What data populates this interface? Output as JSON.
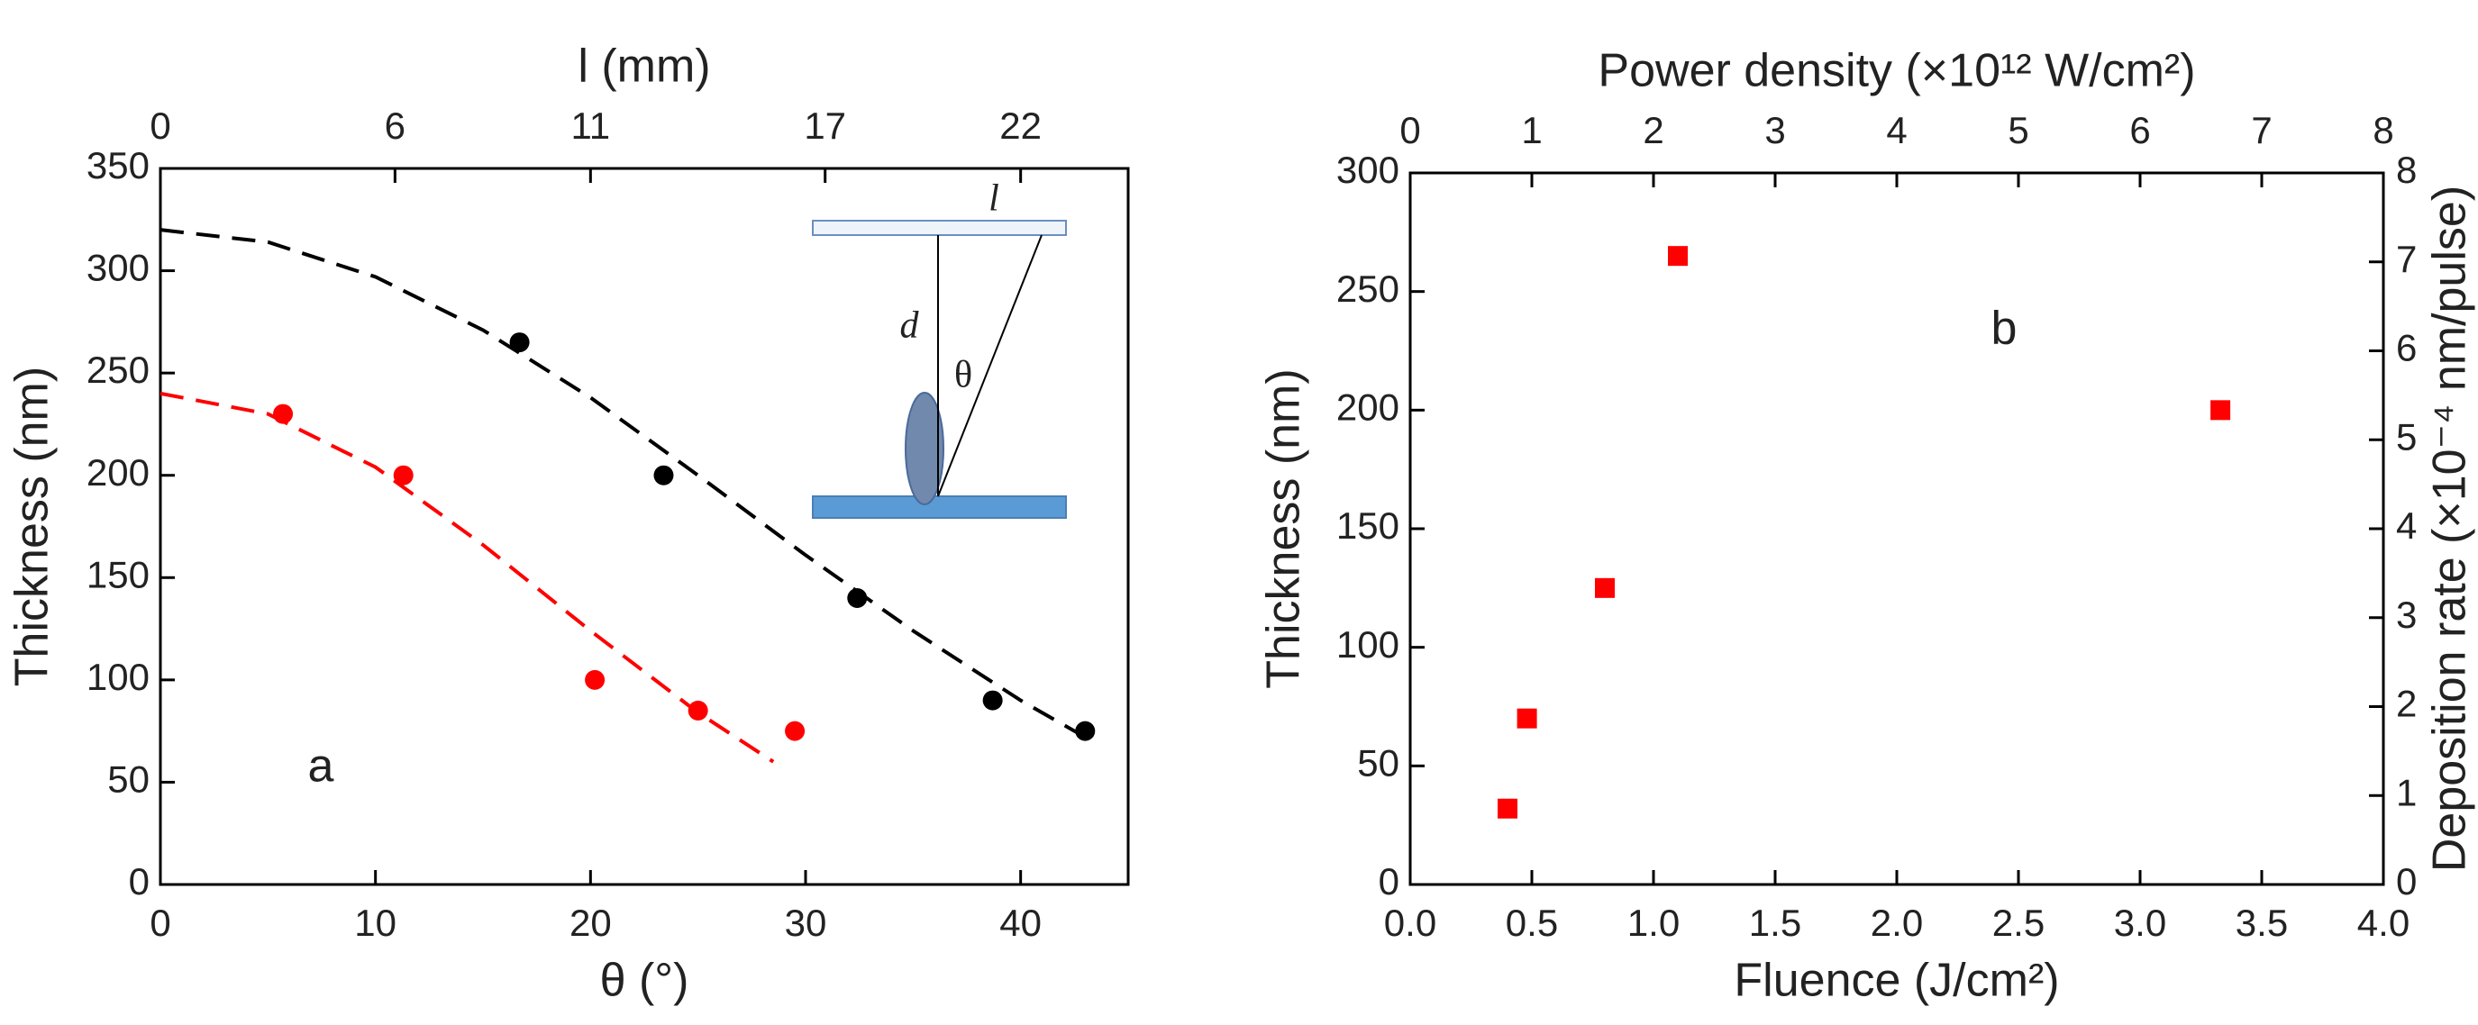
{
  "chart_data": [
    {
      "type": "scatter",
      "xlabel": "θ (°)",
      "ylabel": "Thickness (nm)",
      "x2label": "l (mm)",
      "xlim": [
        0,
        45
      ],
      "xticks": [
        0,
        10,
        20,
        30,
        40
      ],
      "ylim": [
        0,
        350
      ],
      "yticks": [
        0,
        50,
        100,
        150,
        200,
        250,
        300,
        350
      ],
      "x2lim": [
        0,
        24.75
      ],
      "x2ticks": [
        0,
        6,
        11,
        17,
        22
      ],
      "series": [
        {
          "color": "#000000",
          "marker": "circle",
          "x": [
            16.7,
            23.4,
            32.4,
            38.7,
            43
          ],
          "values": [
            265,
            200,
            140,
            90,
            75
          ]
        },
        {
          "color": "#ff0000",
          "marker": "circle",
          "x": [
            5.7,
            11.3,
            20.2,
            25,
            29.5
          ],
          "values": [
            230,
            200,
            100,
            85,
            75
          ]
        },
        {
          "color": "#000000",
          "line": "dashed",
          "x": [
            0,
            5,
            10,
            15,
            20,
            25,
            30,
            35,
            40,
            43
          ],
          "values": [
            320,
            314,
            297,
            271,
            238,
            200,
            161,
            124,
            90,
            72
          ]
        },
        {
          "color": "#ff0000",
          "line": "dashed",
          "x": [
            0,
            5,
            10,
            15,
            20,
            25,
            28.5
          ],
          "values": [
            240,
            230,
            204,
            166,
            124,
            84,
            60
          ]
        }
      ],
      "annotation": "a",
      "inset": {
        "labels": [
          "l",
          "d",
          "θ"
        ]
      }
    },
    {
      "type": "scatter",
      "xlabel": "Fluence (J/cm²)",
      "ylabel": "Thickness (nm)",
      "x2label": "Power density  (×10¹² W/cm²)",
      "y2label": "Deposition rate (×10⁻⁴ nm/pulse)",
      "xlim": [
        0,
        4
      ],
      "xticks": [
        {
          "value": 0,
          "label": "0.0"
        },
        0.5,
        {
          "value": 1,
          "label": "1.0"
        },
        1.5,
        {
          "value": 2,
          "label": "2.0"
        },
        2.5,
        {
          "value": 3,
          "label": "3.0"
        },
        3.5,
        {
          "value": 4,
          "label": "4.0"
        }
      ],
      "ylim": [
        0,
        300
      ],
      "yticks": [
        0,
        50,
        100,
        150,
        200,
        250,
        300
      ],
      "x2lim": [
        0,
        8
      ],
      "x2ticks": [
        0,
        1,
        2,
        3,
        4,
        5,
        6,
        7,
        8
      ],
      "y2lim": [
        0,
        8
      ],
      "y2ticks": [
        0,
        1,
        2,
        3,
        4,
        5,
        6,
        7,
        8
      ],
      "series": [
        {
          "color": "#ff0000",
          "marker": "square",
          "x": [
            0.4,
            0.48,
            0.8,
            1.1,
            3.33
          ],
          "values": [
            32,
            70,
            125,
            265,
            200
          ]
        }
      ],
      "annotation": "b"
    }
  ]
}
